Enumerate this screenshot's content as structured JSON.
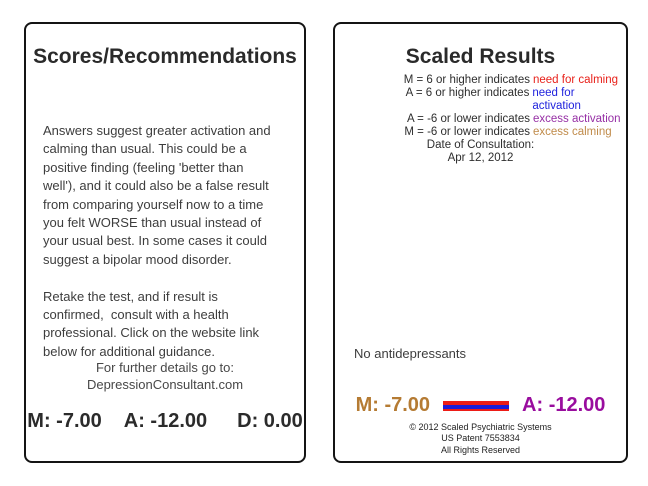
{
  "left_panel": {
    "title": "Scores/Recommendations",
    "body": "Answers suggest greater activation and\ncalming than usual. This could be a\npositive finding (feeling 'better than\nwell'), and it could also be a false result\nfrom comparing yourself now to a time\nyou felt WORSE than usual instead of\nyour usual best. In some cases it could\nsuggest a bipolar mood disorder.\n\nRetake the test, and if result is\nconfirmed,  consult with a health\nprofessional. Click on the website link\nbelow for additional guidance.",
    "further_label": "For further details go to:",
    "website_link": "DepressionConsultant.com",
    "scores": {
      "m": "M: -7.00",
      "a": "A: -12.00",
      "d": "D: 0.00"
    }
  },
  "right_panel": {
    "title": "Scaled Results",
    "legend": [
      {
        "label": "M = 6 or higher indicates",
        "value": "need for calming",
        "color": "#e8211a"
      },
      {
        "label": "A = 6 or higher indicates",
        "value": "need for activation",
        "color": "#2023dd"
      },
      {
        "label": "A = -6 or lower indicates",
        "value": "excess activation",
        "color": "#962fa5"
      },
      {
        "label": "M = -6 or lower indicates",
        "value": "excess calming",
        "color": "#c08b4a"
      }
    ],
    "date_label": "Date of Consultation:",
    "date_value": "Apr 12, 2012",
    "medication_note": "No antidepressants",
    "scores": {
      "m": "M: -7.00",
      "m_color": "#b57b33",
      "a": "A: -12.00",
      "a_color": "#990d9e"
    },
    "score_bar": {
      "red": "#ed1c16",
      "blue": "#1b1bd8"
    },
    "footer": [
      "© 2012 Scaled Psychiatric Systems",
      "US Patent 7553834",
      "All Rights Reserved"
    ]
  }
}
